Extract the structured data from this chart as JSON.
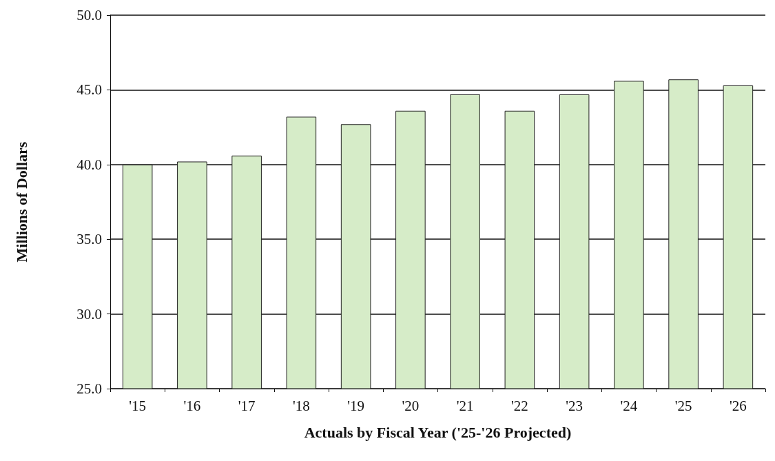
{
  "chart_data": {
    "type": "bar",
    "xlabel": "Actuals by Fiscal Year ('25-'26 Projected)",
    "ylabel": "Millions of Dollars",
    "categories": [
      "'15",
      "'16",
      "'17",
      "'18",
      "'19",
      "'20",
      "'21",
      "'22",
      "'23",
      "'24",
      "'25",
      "'26"
    ],
    "values": [
      40.0,
      40.2,
      40.6,
      43.2,
      42.7,
      43.6,
      44.7,
      43.6,
      44.7,
      45.6,
      45.7,
      45.3
    ],
    "color": "#d6ecc8",
    "ylim": [
      25,
      50
    ],
    "yticks": [
      {
        "value": 25,
        "label": "25.0"
      },
      {
        "value": 30,
        "label": "30.0"
      },
      {
        "value": 35,
        "label": "35.0"
      },
      {
        "value": 40,
        "label": "40.0"
      },
      {
        "value": 45,
        "label": "45.0"
      },
      {
        "value": 50,
        "label": "50.0"
      }
    ],
    "grid": "y"
  }
}
